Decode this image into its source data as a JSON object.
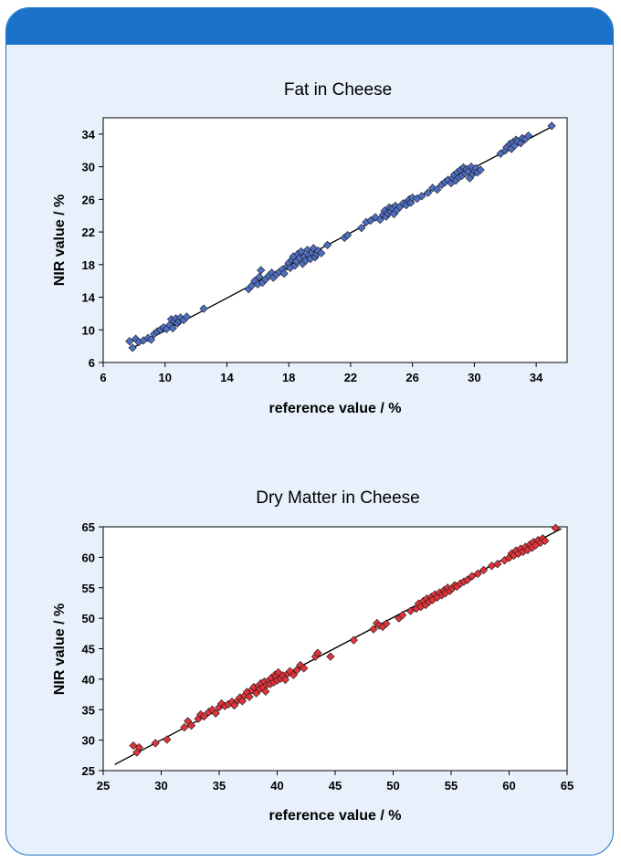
{
  "chart_data": [
    {
      "type": "scatter",
      "title": "Fat in Cheese",
      "xlabel": "reference value / %",
      "ylabel": "NIR value / %",
      "xlim": [
        6,
        36
      ],
      "ylim": [
        6,
        36
      ],
      "xticks": [
        6,
        10,
        14,
        18,
        22,
        26,
        30,
        34
      ],
      "yticks": [
        6,
        10,
        14,
        18,
        22,
        26,
        30,
        34
      ],
      "marker_color": "#4f6fc4",
      "fit_line": [
        [
          7.8,
          7.7
        ],
        [
          35,
          34.9
        ]
      ],
      "points": [
        [
          7.7,
          8.6
        ],
        [
          7.9,
          7.8
        ],
        [
          8.1,
          8.9
        ],
        [
          8.3,
          8.5
        ],
        [
          8.6,
          8.7
        ],
        [
          8.9,
          9.0
        ],
        [
          9.1,
          8.8
        ],
        [
          9.3,
          9.5
        ],
        [
          9.5,
          9.8
        ],
        [
          9.7,
          10.0
        ],
        [
          9.9,
          10.3
        ],
        [
          10.1,
          10.1
        ],
        [
          10.3,
          10.6
        ],
        [
          10.4,
          11.3
        ],
        [
          10.5,
          10.2
        ],
        [
          10.6,
          11.0
        ],
        [
          10.7,
          11.4
        ],
        [
          10.8,
          10.8
        ],
        [
          10.9,
          11.1
        ],
        [
          11.0,
          11.5
        ],
        [
          11.2,
          11.2
        ],
        [
          11.4,
          11.6
        ],
        [
          12.5,
          12.6
        ],
        [
          15.4,
          15.0
        ],
        [
          15.6,
          15.4
        ],
        [
          15.8,
          16.0
        ],
        [
          16.0,
          15.6
        ],
        [
          16.1,
          16.5
        ],
        [
          16.2,
          17.3
        ],
        [
          16.3,
          15.8
        ],
        [
          16.5,
          16.2
        ],
        [
          16.7,
          16.6
        ],
        [
          16.9,
          17.0
        ],
        [
          17.0,
          16.4
        ],
        [
          17.2,
          16.8
        ],
        [
          17.4,
          17.1
        ],
        [
          17.6,
          17.4
        ],
        [
          17.7,
          16.9
        ],
        [
          17.9,
          17.8
        ],
        [
          18.0,
          18.2
        ],
        [
          18.1,
          17.6
        ],
        [
          18.2,
          18.6
        ],
        [
          18.3,
          19.0
        ],
        [
          18.4,
          17.9
        ],
        [
          18.5,
          18.4
        ],
        [
          18.6,
          19.3
        ],
        [
          18.7,
          18.8
        ],
        [
          18.8,
          19.6
        ],
        [
          18.9,
          18.1
        ],
        [
          19.0,
          19.0
        ],
        [
          19.1,
          18.5
        ],
        [
          19.2,
          19.8
        ],
        [
          19.3,
          19.2
        ],
        [
          19.4,
          18.7
        ],
        [
          19.5,
          19.5
        ],
        [
          19.6,
          20.0
        ],
        [
          19.7,
          18.9
        ],
        [
          19.8,
          19.3
        ],
        [
          19.9,
          19.7
        ],
        [
          20.1,
          19.4
        ],
        [
          20.5,
          20.4
        ],
        [
          21.6,
          21.3
        ],
        [
          21.8,
          21.6
        ],
        [
          22.7,
          22.5
        ],
        [
          23.0,
          23.2
        ],
        [
          23.3,
          23.4
        ],
        [
          23.6,
          23.8
        ],
        [
          23.9,
          23.5
        ],
        [
          24.1,
          24.1
        ],
        [
          24.2,
          24.6
        ],
        [
          24.3,
          23.9
        ],
        [
          24.4,
          24.3
        ],
        [
          24.5,
          25.0
        ],
        [
          24.6,
          24.5
        ],
        [
          24.7,
          24.9
        ],
        [
          24.8,
          24.2
        ],
        [
          24.9,
          25.2
        ],
        [
          25.0,
          24.7
        ],
        [
          25.2,
          25.1
        ],
        [
          25.4,
          25.5
        ],
        [
          25.6,
          25.3
        ],
        [
          25.7,
          25.8
        ],
        [
          25.8,
          26.0
        ],
        [
          25.9,
          25.6
        ],
        [
          26.0,
          26.2
        ],
        [
          26.3,
          26.1
        ],
        [
          26.6,
          26.4
        ],
        [
          27.0,
          26.8
        ],
        [
          27.3,
          27.4
        ],
        [
          27.6,
          27.2
        ],
        [
          27.9,
          27.8
        ],
        [
          28.1,
          28.1
        ],
        [
          28.3,
          28.4
        ],
        [
          28.5,
          28.0
        ],
        [
          28.6,
          28.6
        ],
        [
          28.7,
          29.0
        ],
        [
          28.8,
          28.3
        ],
        [
          28.9,
          29.3
        ],
        [
          29.0,
          28.7
        ],
        [
          29.1,
          29.6
        ],
        [
          29.2,
          28.9
        ],
        [
          29.3,
          29.9
        ],
        [
          29.4,
          29.2
        ],
        [
          29.5,
          29.7
        ],
        [
          29.6,
          29.4
        ],
        [
          29.7,
          28.6
        ],
        [
          29.8,
          30.0
        ],
        [
          29.9,
          29.1
        ],
        [
          30.0,
          29.5
        ],
        [
          30.1,
          29.8
        ],
        [
          30.2,
          29.3
        ],
        [
          30.4,
          29.6
        ],
        [
          31.7,
          31.6
        ],
        [
          32.0,
          32.0
        ],
        [
          32.1,
          32.4
        ],
        [
          32.3,
          32.8
        ],
        [
          32.4,
          32.2
        ],
        [
          32.5,
          33.0
        ],
        [
          32.6,
          32.6
        ],
        [
          32.7,
          33.3
        ],
        [
          32.8,
          33.1
        ],
        [
          33.0,
          32.9
        ],
        [
          33.1,
          33.5
        ],
        [
          33.3,
          33.4
        ],
        [
          33.5,
          33.8
        ],
        [
          35.0,
          35.0
        ]
      ]
    },
    {
      "type": "scatter",
      "title": "Dry Matter in Cheese",
      "xlabel": "reference value / %",
      "ylabel": "NIR value / %",
      "xlim": [
        25,
        65
      ],
      "ylim": [
        25,
        65
      ],
      "xticks": [
        25,
        30,
        35,
        40,
        45,
        50,
        55,
        60,
        65
      ],
      "yticks": [
        25,
        30,
        35,
        40,
        45,
        50,
        55,
        60,
        65
      ],
      "marker_color": "#e0343a",
      "fit_line": [
        [
          26,
          26
        ],
        [
          64.5,
          64.7
        ]
      ],
      "points": [
        [
          27.6,
          29.1
        ],
        [
          27.9,
          28.0
        ],
        [
          28.1,
          28.8
        ],
        [
          29.5,
          29.5
        ],
        [
          30.5,
          30.1
        ],
        [
          32.0,
          32.1
        ],
        [
          32.3,
          33.1
        ],
        [
          32.6,
          32.4
        ],
        [
          33.2,
          33.5
        ],
        [
          33.4,
          34.2
        ],
        [
          33.7,
          33.9
        ],
        [
          34.1,
          34.6
        ],
        [
          34.4,
          35.0
        ],
        [
          34.7,
          34.4
        ],
        [
          35.0,
          35.4
        ],
        [
          35.2,
          36.0
        ],
        [
          35.5,
          35.6
        ],
        [
          35.8,
          35.9
        ],
        [
          36.1,
          36.3
        ],
        [
          36.3,
          35.7
        ],
        [
          36.6,
          36.5
        ],
        [
          36.8,
          37.0
        ],
        [
          37.0,
          36.4
        ],
        [
          37.2,
          37.3
        ],
        [
          37.4,
          37.9
        ],
        [
          37.6,
          37.1
        ],
        [
          37.8,
          38.2
        ],
        [
          38.0,
          38.7
        ],
        [
          38.2,
          37.7
        ],
        [
          38.4,
          38.9
        ],
        [
          38.5,
          38.4
        ],
        [
          38.6,
          39.3
        ],
        [
          38.8,
          38.6
        ],
        [
          38.9,
          39.6
        ],
        [
          39.0,
          38.0
        ],
        [
          39.1,
          39.1
        ],
        [
          39.3,
          39.8
        ],
        [
          39.4,
          39.2
        ],
        [
          39.5,
          40.2
        ],
        [
          39.7,
          39.5
        ],
        [
          39.8,
          40.7
        ],
        [
          39.9,
          40.4
        ],
        [
          40.0,
          39.8
        ],
        [
          40.1,
          41.1
        ],
        [
          40.3,
          40.1
        ],
        [
          40.5,
          40.6
        ],
        [
          40.7,
          39.9
        ],
        [
          40.9,
          40.9
        ],
        [
          41.1,
          41.3
        ],
        [
          41.4,
          40.7
        ],
        [
          41.7,
          41.5
        ],
        [
          42.0,
          42.3
        ],
        [
          42.3,
          41.8
        ],
        [
          43.3,
          43.7
        ],
        [
          43.5,
          44.3
        ],
        [
          44.6,
          43.7
        ],
        [
          46.6,
          46.4
        ],
        [
          48.3,
          48.2
        ],
        [
          48.6,
          49.2
        ],
        [
          48.8,
          48.8
        ],
        [
          49.1,
          48.6
        ],
        [
          49.4,
          49.1
        ],
        [
          50.5,
          50.0
        ],
        [
          50.8,
          50.5
        ],
        [
          51.5,
          51.2
        ],
        [
          52.0,
          51.6
        ],
        [
          52.2,
          52.4
        ],
        [
          52.4,
          51.9
        ],
        [
          52.6,
          52.8
        ],
        [
          52.8,
          52.2
        ],
        [
          52.9,
          53.2
        ],
        [
          53.1,
          52.7
        ],
        [
          53.3,
          53.5
        ],
        [
          53.4,
          53.0
        ],
        [
          53.6,
          53.9
        ],
        [
          53.8,
          53.4
        ],
        [
          54.0,
          54.2
        ],
        [
          54.2,
          53.8
        ],
        [
          54.4,
          54.6
        ],
        [
          54.5,
          54.1
        ],
        [
          54.7,
          55.0
        ],
        [
          54.9,
          54.5
        ],
        [
          55.1,
          54.9
        ],
        [
          55.3,
          55.4
        ],
        [
          55.5,
          55.2
        ],
        [
          55.8,
          55.7
        ],
        [
          56.1,
          56.0
        ],
        [
          56.4,
          56.3
        ],
        [
          56.8,
          56.9
        ],
        [
          57.3,
          57.3
        ],
        [
          57.8,
          57.9
        ],
        [
          58.5,
          58.6
        ],
        [
          59.0,
          58.9
        ],
        [
          59.6,
          59.5
        ],
        [
          60.0,
          59.9
        ],
        [
          60.2,
          60.6
        ],
        [
          60.4,
          60.3
        ],
        [
          60.6,
          61.1
        ],
        [
          60.8,
          60.6
        ],
        [
          61.0,
          61.4
        ],
        [
          61.2,
          60.9
        ],
        [
          61.4,
          61.7
        ],
        [
          61.6,
          61.2
        ],
        [
          61.8,
          62.1
        ],
        [
          62.0,
          61.6
        ],
        [
          62.1,
          62.5
        ],
        [
          62.3,
          62.0
        ],
        [
          62.5,
          62.8
        ],
        [
          62.7,
          62.4
        ],
        [
          62.9,
          63.1
        ],
        [
          63.1,
          62.7
        ],
        [
          64.0,
          64.8
        ]
      ]
    }
  ]
}
